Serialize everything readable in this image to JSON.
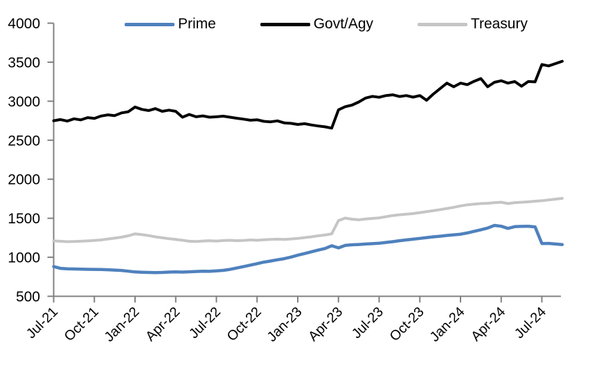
{
  "chart_data": {
    "type": "line",
    "title": "",
    "grid": false,
    "background": "#FFFFFF",
    "axis_color": "#808080",
    "text_color": "#000000",
    "legend": {
      "position": "top",
      "items": [
        "Prime",
        "Govt/Agy",
        "Treasury"
      ]
    },
    "x_axis": {
      "tick_labels": [
        "Jul-21",
        "Oct-21",
        "Jan-22",
        "Apr-22",
        "Jul-22",
        "Oct-22",
        "Jan-23",
        "Apr-23",
        "Jul-23",
        "Oct-23",
        "Jan-24",
        "Apr-24",
        "Jul-24"
      ],
      "tick_positions_months": [
        0,
        3,
        6,
        9,
        12,
        15,
        18,
        21,
        24,
        27,
        30,
        33,
        36
      ],
      "x_start_months": 0,
      "x_step_months": 0.5,
      "x_end_months": 37.5,
      "label_rotation_deg": -45
    },
    "y_axis": {
      "min": 500,
      "max": 4000,
      "tick_interval": 500,
      "tick_labels": [
        "500",
        "1000",
        "1500",
        "2000",
        "2500",
        "3000",
        "3500",
        "4000"
      ]
    },
    "series": [
      {
        "name": "Prime",
        "color": "#4F81BD",
        "values": [
          880,
          858,
          852,
          850,
          848,
          846,
          845,
          843,
          840,
          836,
          831,
          822,
          812,
          808,
          806,
          804,
          806,
          810,
          812,
          810,
          814,
          818,
          822,
          820,
          826,
          832,
          845,
          862,
          880,
          900,
          918,
          938,
          952,
          968,
          982,
          1002,
          1026,
          1048,
          1070,
          1092,
          1112,
          1148,
          1120,
          1152,
          1160,
          1164,
          1170,
          1174,
          1180,
          1190,
          1200,
          1212,
          1222,
          1232,
          1242,
          1252,
          1262,
          1270,
          1280,
          1288,
          1296,
          1312,
          1332,
          1352,
          1375,
          1408,
          1398,
          1370,
          1392,
          1396,
          1398,
          1390,
          1176,
          1178,
          1170,
          1163
        ]
      },
      {
        "name": "Govt/Agy",
        "color": "#000000",
        "values": [
          2750,
          2765,
          2745,
          2775,
          2760,
          2790,
          2780,
          2810,
          2825,
          2815,
          2850,
          2865,
          2925,
          2895,
          2880,
          2905,
          2870,
          2885,
          2870,
          2795,
          2830,
          2800,
          2812,
          2795,
          2800,
          2808,
          2795,
          2782,
          2770,
          2756,
          2762,
          2742,
          2736,
          2748,
          2722,
          2716,
          2702,
          2712,
          2696,
          2682,
          2672,
          2655,
          2890,
          2930,
          2950,
          2990,
          3040,
          3062,
          3050,
          3072,
          3082,
          3060,
          3072,
          3052,
          3072,
          3012,
          3092,
          3162,
          3232,
          3185,
          3232,
          3212,
          3255,
          3290,
          3185,
          3242,
          3262,
          3232,
          3252,
          3192,
          3252,
          3248,
          3470,
          3452,
          3482,
          3512
        ]
      },
      {
        "name": "Treasury",
        "color": "#C5C5C5",
        "values": [
          1210,
          1205,
          1200,
          1202,
          1205,
          1210,
          1215,
          1222,
          1235,
          1245,
          1258,
          1275,
          1300,
          1290,
          1278,
          1262,
          1250,
          1238,
          1228,
          1218,
          1205,
          1202,
          1208,
          1212,
          1208,
          1214,
          1218,
          1212,
          1216,
          1222,
          1218,
          1224,
          1228,
          1232,
          1228,
          1235,
          1242,
          1252,
          1262,
          1275,
          1285,
          1300,
          1470,
          1502,
          1488,
          1480,
          1490,
          1498,
          1505,
          1520,
          1535,
          1545,
          1552,
          1560,
          1572,
          1585,
          1598,
          1610,
          1625,
          1640,
          1658,
          1672,
          1680,
          1688,
          1692,
          1700,
          1705,
          1688,
          1700,
          1705,
          1710,
          1718,
          1725,
          1735,
          1745,
          1755
        ]
      }
    ]
  }
}
